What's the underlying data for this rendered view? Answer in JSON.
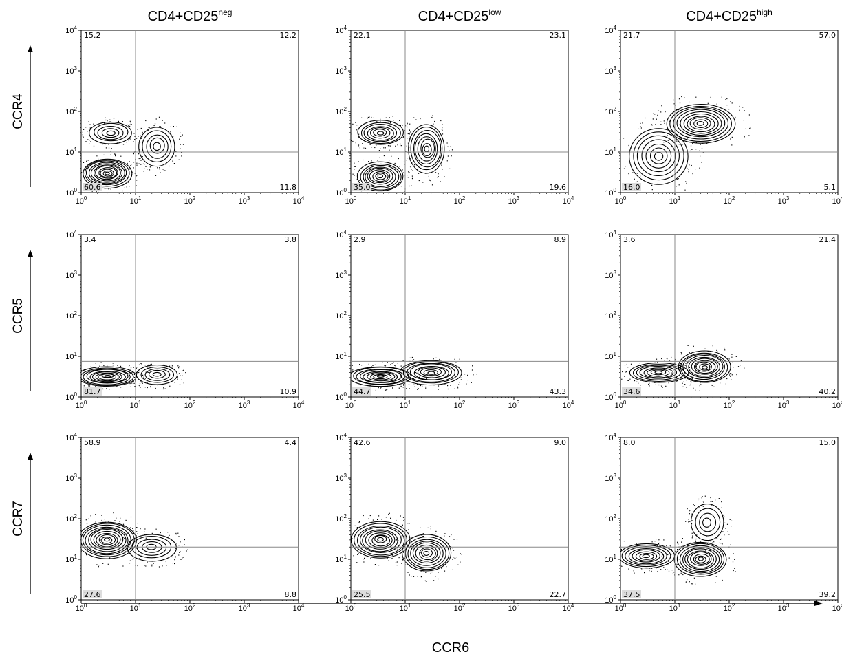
{
  "chart_data": {
    "type": "contour",
    "columns": [
      {
        "label": "CD4+CD25",
        "sup": "neg"
      },
      {
        "label": "CD4+CD25",
        "sup": "low"
      },
      {
        "label": "CD4+CD25",
        "sup": "high"
      }
    ],
    "rows": [
      "CCR4",
      "CCR5",
      "CCR7"
    ],
    "xlabel": "CCR6",
    "axis": {
      "scale": "log",
      "range": [
        1,
        10000
      ],
      "ticks": [
        1,
        10,
        100,
        1000,
        10000
      ]
    },
    "tick_base": "10",
    "tick_exps": [
      "0",
      "1",
      "2",
      "3",
      "4"
    ],
    "gate_x": 10,
    "panels": [
      {
        "row": "CCR4",
        "col": "CD4+CD25neg",
        "gate_y": 10,
        "q": {
          "ul": "15.2",
          "ur": "12.2",
          "ll": "60.6",
          "lr": "11.8"
        },
        "blobs": [
          {
            "x": 3,
            "y": 3,
            "n": 11,
            "rx": 0.3,
            "ry": 0.24
          },
          {
            "x": 3.5,
            "y": 30,
            "n": 5,
            "rx": 0.26,
            "ry": 0.18
          },
          {
            "x": 25,
            "y": 14,
            "n": 5,
            "rx": 0.22,
            "ry": 0.32
          }
        ]
      },
      {
        "row": "CCR4",
        "col": "CD4+CD25low",
        "gate_y": 10,
        "q": {
          "ul": "22.1",
          "ur": "23.1",
          "ll": "35.0",
          "lr": "19.6"
        },
        "blobs": [
          {
            "x": 3.5,
            "y": 2.5,
            "n": 9,
            "rx": 0.28,
            "ry": 0.24
          },
          {
            "x": 3.5,
            "y": 30,
            "n": 7,
            "rx": 0.28,
            "ry": 0.2
          },
          {
            "x": 25,
            "y": 12,
            "n": 8,
            "rx": 0.22,
            "ry": 0.4
          }
        ]
      },
      {
        "row": "CCR4",
        "col": "CD4+CD25high",
        "gate_y": 10,
        "q": {
          "ul": "21.7",
          "ur": "57.0",
          "ll": "16.0",
          "lr": "5.1"
        },
        "blobs": [
          {
            "x": 30,
            "y": 50,
            "n": 10,
            "rx": 0.42,
            "ry": 0.32
          },
          {
            "x": 5,
            "y": 8,
            "n": 7,
            "rx": 0.36,
            "ry": 0.46
          }
        ]
      },
      {
        "row": "CCR5",
        "col": "CD4+CD25neg",
        "gate_y": 7.5,
        "q": {
          "ul": "3.4",
          "ur": "3.8",
          "ll": "81.7",
          "lr": "10.9"
        },
        "blobs": [
          {
            "x": 3,
            "y": 3.2,
            "n": 10,
            "rx": 0.36,
            "ry": 0.16
          },
          {
            "x": 25,
            "y": 3.5,
            "n": 5,
            "rx": 0.25,
            "ry": 0.16
          }
        ]
      },
      {
        "row": "CCR5",
        "col": "CD4+CD25low",
        "gate_y": 7.5,
        "q": {
          "ul": "2.9",
          "ur": "8.9",
          "ll": "44.7",
          "lr": "43.3"
        },
        "blobs": [
          {
            "x": 3.5,
            "y": 3.2,
            "n": 9,
            "rx": 0.38,
            "ry": 0.16
          },
          {
            "x": 30,
            "y": 4,
            "n": 9,
            "rx": 0.38,
            "ry": 0.2
          }
        ]
      },
      {
        "row": "CCR5",
        "col": "CD4+CD25high",
        "gate_y": 7.5,
        "q": {
          "ul": "3.6",
          "ur": "21.4",
          "ll": "34.6",
          "lr": "40.2"
        },
        "blobs": [
          {
            "x": 5,
            "y": 4,
            "n": 8,
            "rx": 0.36,
            "ry": 0.16
          },
          {
            "x": 35,
            "y": 5.5,
            "n": 10,
            "rx": 0.32,
            "ry": 0.26
          }
        ]
      },
      {
        "row": "CCR7",
        "col": "CD4+CD25neg",
        "gate_y": 20,
        "q": {
          "ul": "58.9",
          "ur": "4.4",
          "ll": "27.6",
          "lr": "8.8"
        },
        "blobs": [
          {
            "x": 3,
            "y": 30,
            "n": 11,
            "rx": 0.36,
            "ry": 0.3
          },
          {
            "x": 20,
            "y": 20,
            "n": 5,
            "rx": 0.3,
            "ry": 0.22
          }
        ]
      },
      {
        "row": "CCR7",
        "col": "CD4+CD25low",
        "gate_y": 20,
        "q": {
          "ul": "42.6",
          "ur": "9.0",
          "ll": "25.5",
          "lr": "22.7"
        },
        "blobs": [
          {
            "x": 3.5,
            "y": 30,
            "n": 10,
            "rx": 0.36,
            "ry": 0.3
          },
          {
            "x": 25,
            "y": 14,
            "n": 9,
            "rx": 0.3,
            "ry": 0.3
          }
        ]
      },
      {
        "row": "CCR7",
        "col": "CD4+CD25high",
        "gate_y": 20,
        "q": {
          "ul": "8.0",
          "ur": "15.0",
          "ll": "37.5",
          "lr": "39.2"
        },
        "blobs": [
          {
            "x": 3,
            "y": 12,
            "n": 8,
            "rx": 0.34,
            "ry": 0.2
          },
          {
            "x": 30,
            "y": 10,
            "n": 10,
            "rx": 0.32,
            "ry": 0.28
          },
          {
            "x": 40,
            "y": 80,
            "n": 4,
            "rx": 0.2,
            "ry": 0.3
          }
        ]
      }
    ]
  }
}
